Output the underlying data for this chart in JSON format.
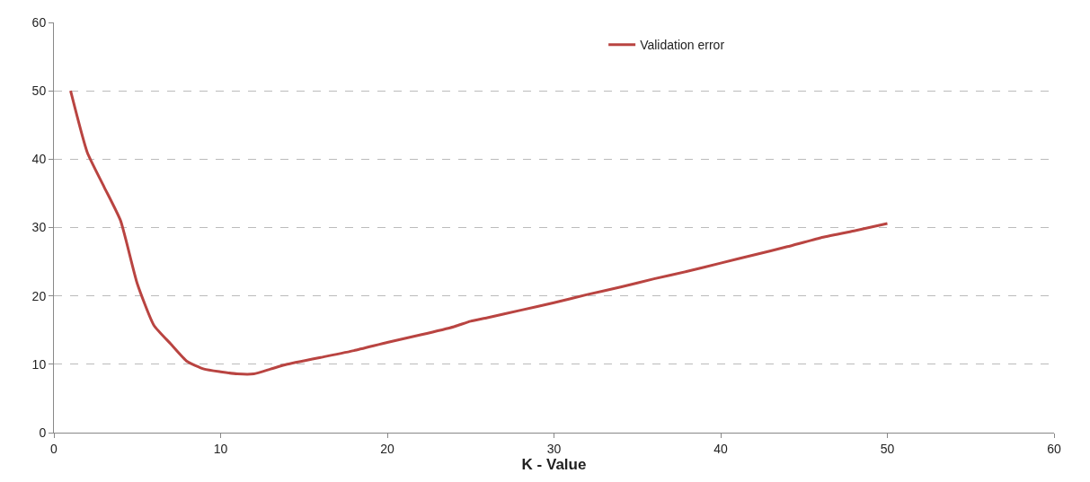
{
  "chart_data": {
    "type": "line",
    "xlabel": "K - Value",
    "x": [
      1,
      2,
      3,
      4,
      5,
      6,
      7,
      8,
      9,
      10,
      11,
      12,
      13,
      14,
      15,
      16,
      18,
      20,
      22,
      24,
      25,
      26,
      28,
      30,
      32,
      34,
      36,
      38,
      40,
      42,
      44,
      46,
      48,
      50
    ],
    "series": [
      {
        "name": "Validation error",
        "color": "#b94441",
        "values": [
          50,
          41,
          36,
          31,
          21.8,
          15.7,
          13,
          10.4,
          9.3,
          8.9,
          8.6,
          8.6,
          9.3,
          10,
          10.5,
          11,
          12,
          13.2,
          14.3,
          15.5,
          16.3,
          16.8,
          17.9,
          19,
          20.2,
          21.3,
          22.5,
          23.6,
          24.8,
          26,
          27.2,
          28.5,
          29.5,
          30.6
        ]
      }
    ],
    "xlim": [
      0,
      60
    ],
    "xticks": [
      0,
      10,
      20,
      30,
      40,
      50,
      60
    ],
    "ylim": [
      0,
      60
    ],
    "yticks": [
      0,
      10,
      20,
      30,
      40,
      50,
      60
    ],
    "grid": "y",
    "legend": "top right",
    "marker": "none",
    "line_style": "solid"
  }
}
